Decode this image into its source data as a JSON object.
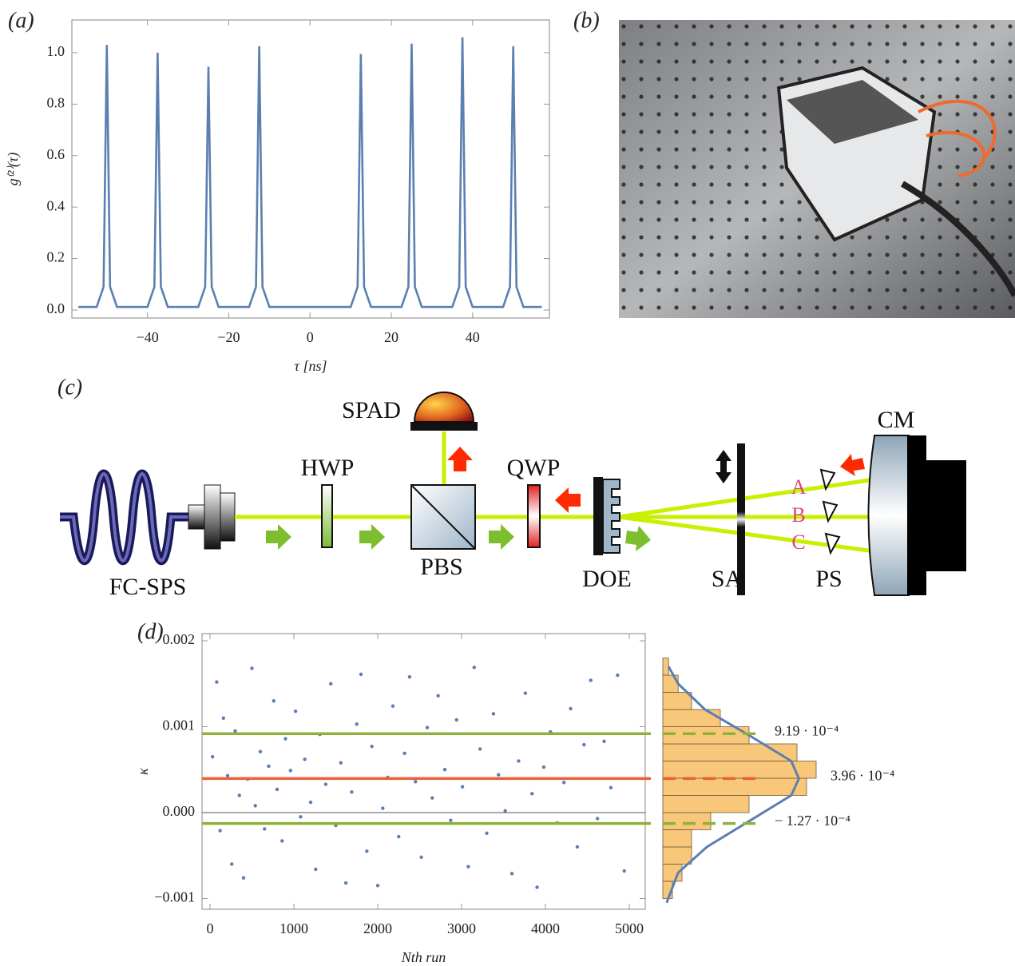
{
  "chart_data": [
    {
      "type": "line",
      "panel": "(a)",
      "xlabel": "τ [ns]",
      "ylabel": "g⁽²⁾(τ)",
      "color": "#5b7fb0",
      "x": [
        -57,
        -52.5,
        -50.8,
        -50,
        -49.2,
        -47.5,
        -40,
        -38.3,
        -37.5,
        -36.7,
        -35,
        -27.5,
        -25.8,
        -25,
        -24.2,
        -22.5,
        -15,
        -13.3,
        -12.5,
        -11.7,
        -10,
        10,
        11.7,
        12.5,
        13.3,
        15,
        22.5,
        24.2,
        25,
        25.8,
        27.5,
        35,
        36.7,
        37.5,
        38.3,
        40,
        47.5,
        49.2,
        50,
        50.8,
        52.5,
        57
      ],
      "values": [
        0.012,
        0.012,
        0.09,
        1.03,
        0.09,
        0.012,
        0.012,
        0.09,
        1.0,
        0.09,
        0.012,
        0.012,
        0.09,
        0.945,
        0.09,
        0.012,
        0.012,
        0.09,
        1.025,
        0.09,
        0.012,
        0.012,
        0.09,
        0.995,
        0.09,
        0.012,
        0.012,
        0.09,
        1.035,
        0.09,
        0.012,
        0.012,
        0.09,
        1.06,
        0.09,
        0.012,
        0.012,
        0.09,
        1.025,
        0.09,
        0.012,
        0.012
      ],
      "xlim": [
        -58.6,
        58.9
      ],
      "ylim": [
        -0.031,
        1.127
      ],
      "xticks": [
        {
          "value": -40,
          "label": "−40"
        },
        {
          "value": -20,
          "label": "−20"
        },
        0,
        20,
        40
      ],
      "yticks": [
        {
          "value": 0,
          "label": "0.0"
        },
        0.2,
        0.4,
        0.6,
        0.8,
        {
          "value": 1,
          "label": "1.0"
        }
      ]
    },
    {
      "type": "scatter",
      "panel": "(d)",
      "xlabel": "Nth run",
      "ylabel": "κ",
      "color": "#5b7fb0",
      "x": [
        30,
        80,
        120,
        160,
        210,
        260,
        300,
        350,
        400,
        450,
        500,
        540,
        600,
        650,
        700,
        760,
        800,
        860,
        900,
        960,
        1020,
        1080,
        1130,
        1200,
        1260,
        1310,
        1380,
        1440,
        1500,
        1560,
        1620,
        1690,
        1750,
        1800,
        1870,
        1930,
        2000,
        2060,
        2120,
        2180,
        2250,
        2320,
        2380,
        2450,
        2520,
        2590,
        2650,
        2720,
        2800,
        2870,
        2940,
        3010,
        3080,
        3150,
        3220,
        3300,
        3380,
        3440,
        3520,
        3600,
        3680,
        3760,
        3840,
        3900,
        3980,
        4060,
        4140,
        4220,
        4300,
        4380,
        4460,
        4540,
        4620,
        4700,
        4780,
        4860,
        4940
      ],
      "values": [
        0.00065,
        0.00152,
        -0.00021,
        0.0011,
        0.00043,
        -0.0006,
        0.00095,
        0.0002,
        -0.00076,
        0.00039,
        0.00168,
        8e-05,
        0.00071,
        -0.00019,
        0.00054,
        0.0013,
        0.00027,
        -0.00033,
        0.00086,
        0.00049,
        0.00118,
        -5e-05,
        0.00062,
        0.00012,
        -0.00066,
        0.00091,
        0.00033,
        0.0015,
        -0.00015,
        0.00058,
        -0.00082,
        0.00024,
        0.00103,
        0.00161,
        -0.00045,
        0.00077,
        -0.00085,
        5e-05,
        0.00041,
        0.00124,
        -0.00028,
        0.00069,
        0.00158,
        0.00036,
        -0.00052,
        0.00099,
        0.00017,
        0.00136,
        0.0005,
        -9e-05,
        0.00108,
        0.0003,
        -0.00063,
        0.00169,
        0.00074,
        -0.00024,
        0.00115,
        0.00044,
        2e-05,
        -0.00071,
        0.0006,
        0.00139,
        0.00022,
        -0.00087,
        0.00053,
        0.00094,
        -0.00012,
        0.00035,
        0.00121,
        -0.0004,
        0.00079,
        0.00154,
        -7e-05,
        0.00083,
        0.00029,
        0.0016,
        -0.00068
      ],
      "xlim": [
        -95,
        5190
      ],
      "ylim": [
        -0.001126,
        0.002084
      ],
      "xticks": [
        0,
        1000,
        2000,
        3000,
        4000,
        5000
      ],
      "yticks": [
        {
          "value": -0.001,
          "label": "−0.001"
        },
        {
          "value": 0,
          "label": "0.000"
        },
        0.001,
        0.002
      ],
      "hlines": [
        {
          "value": 0.000919,
          "label": "9.19 · 10⁻⁴",
          "color": "#8fb03a"
        },
        {
          "value": 0.000396,
          "label": "3.96 · 10⁻⁴",
          "color": "#e8613a"
        },
        {
          "value": -0.000127,
          "label": "− 1.27 · 10⁻⁴",
          "color": "#8fb03a"
        }
      ]
    },
    {
      "type": "histogram",
      "color": "#f8c77a",
      "bins": [
        -0.001,
        -0.0008,
        -0.0006,
        -0.0004,
        -0.0002,
        0,
        0.0002,
        0.0004,
        0.0006,
        0.0008,
        0.001,
        0.0012,
        0.0014,
        0.0016,
        0.0018
      ],
      "values": [
        5,
        10,
        15,
        15,
        25,
        45,
        75,
        80,
        70,
        45,
        30,
        15,
        8,
        3
      ],
      "xlim": [
        0,
        80
      ],
      "ylim": [
        -0.001126,
        0.002084
      ],
      "fit": {
        "color": "#5b7fb0",
        "kappa": [
          -0.00105,
          -0.0007,
          -0.0004,
          -0.0001,
          0.0002,
          0.000396,
          0.0006,
          0.0009,
          0.0012,
          0.0015,
          0.0017
        ],
        "values": [
          2,
          8,
          23,
          45,
          67,
          71,
          67,
          45,
          22,
          8,
          3
        ]
      }
    }
  ],
  "photo": {
    "panel": "(b)"
  },
  "diagram": {
    "panel": "(c)",
    "labels": {
      "source": "FC-SPS",
      "hwp": "HWP",
      "pbs": "PBS",
      "spad": "SPAD",
      "qwp": "QWP",
      "doe": "DOE",
      "sa": "SA",
      "ps": "PS",
      "cm": "CM",
      "a": "A",
      "b": "B",
      "c": "C"
    }
  }
}
